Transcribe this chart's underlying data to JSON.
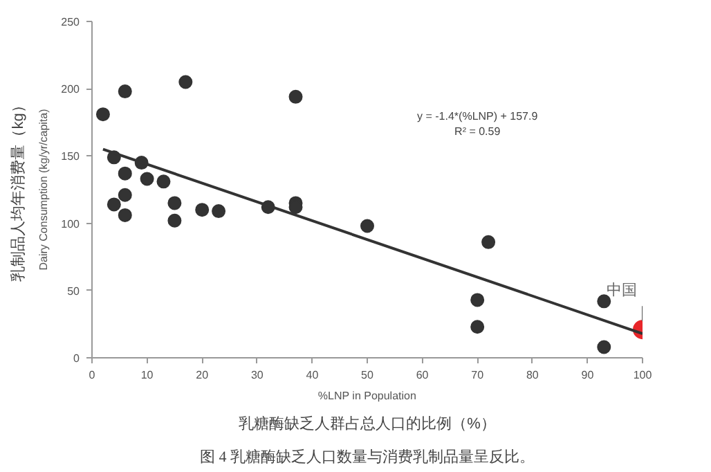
{
  "chart_data": {
    "type": "scatter",
    "xlabel": "%LNP in Population",
    "ylabel": "Dairy Consumption (kg/yr/capita)",
    "xlim": [
      0,
      100
    ],
    "xticks": [
      0,
      10,
      20,
      30,
      40,
      50,
      60,
      70,
      80,
      90,
      100
    ],
    "ylim": [
      0,
      250
    ],
    "yticks": [
      0,
      50,
      100,
      150,
      200,
      250
    ],
    "grid": false,
    "series": [
      {
        "color": "#333333",
        "x": [
          2,
          4,
          4,
          6,
          6,
          6,
          6,
          9,
          10,
          13,
          15,
          15,
          17,
          20,
          23,
          32,
          37,
          37,
          37,
          50,
          72,
          70,
          70,
          93,
          93
        ],
        "values": [
          181,
          149,
          114,
          198,
          137,
          121,
          106,
          145,
          133,
          131,
          115,
          102,
          205,
          110,
          109,
          112,
          194,
          115,
          112,
          98,
          86,
          43,
          23,
          42,
          8
        ]
      },
      {
        "color": "#e8262a",
        "x": [
          100
        ],
        "values": [
          21
        ]
      },
      {
        "type": "line",
        "color": "#333333",
        "x": [
          2,
          100
        ],
        "values": [
          155,
          18
        ]
      }
    ],
    "annotations": [
      "乳制品人均年消费量（kg）",
      "乳糖酶缺乏人群占总人口的比例（%）",
      "图 4 乳糖酶缺乏人口数量与消费乳制品量呈反比。",
      "y = -1.4*(%LNP) + 157.9",
      "R² = 0.59",
      {
        "text": "中国",
        "x": 100,
        "y": 21
      }
    ]
  }
}
